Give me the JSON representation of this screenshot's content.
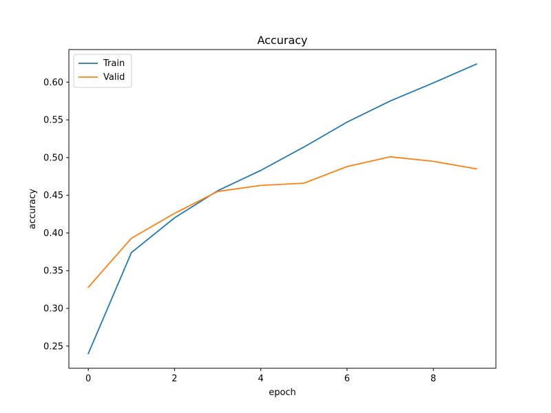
{
  "chart_data": {
    "type": "line",
    "title": "Accuracy",
    "xlabel": "epoch",
    "ylabel": "accuracy",
    "x": [
      0,
      1,
      2,
      3,
      4,
      5,
      6,
      7,
      8,
      9
    ],
    "xlim": [
      -0.45,
      9.45
    ],
    "ylim": [
      0.2206,
      0.6432
    ],
    "xticks": [
      0,
      2,
      4,
      6,
      8
    ],
    "yticks": [
      0.25,
      0.3,
      0.35,
      0.4,
      0.45,
      0.5,
      0.55,
      0.6
    ],
    "xtick_labels": [
      "0",
      "2",
      "4",
      "6",
      "8"
    ],
    "ytick_labels": [
      "0.25",
      "0.30",
      "0.35",
      "0.40",
      "0.45",
      "0.50",
      "0.55",
      "0.60"
    ],
    "grid": false,
    "legend_position": "top-left",
    "series": [
      {
        "name": "Train",
        "color": "#1f77b4",
        "values": [
          0.24,
          0.374,
          0.42,
          0.456,
          0.483,
          0.514,
          0.547,
          0.575,
          0.599,
          0.624
        ]
      },
      {
        "name": "Valid",
        "color": "#ff7f0e",
        "values": [
          0.328,
          0.393,
          0.426,
          0.455,
          0.463,
          0.466,
          0.488,
          0.501,
          0.495,
          0.485
        ]
      }
    ]
  }
}
